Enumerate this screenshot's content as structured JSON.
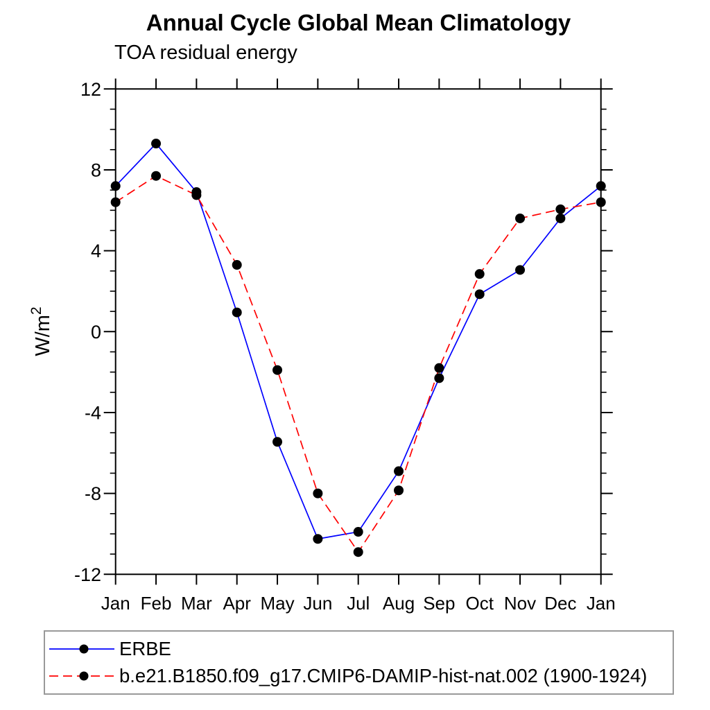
{
  "title": "Annual Cycle Global Mean Climatology",
  "subtitle": "TOA residual energy",
  "chart_data": {
    "type": "line",
    "x_categories": [
      "Jan",
      "Feb",
      "Mar",
      "Apr",
      "May",
      "Jun",
      "Jul",
      "Aug",
      "Sep",
      "Oct",
      "Nov",
      "Dec",
      "Jan"
    ],
    "ylabel_base": "W/m",
    "ylabel_sup": "2",
    "ylim": [
      -12,
      12
    ],
    "ytick_major": [
      -12,
      -8,
      -4,
      0,
      4,
      8,
      12
    ],
    "ytick_minor_step": 1,
    "grid": false,
    "tick_direction": "outward",
    "legend_position": "bottom-left",
    "axis_color": "#000000",
    "marker_color": "#000000",
    "series": [
      {
        "name": "ERBE",
        "color": "#0000ff",
        "line_style": "solid",
        "marker": "black-circle",
        "values": [
          7.2,
          9.3,
          6.9,
          0.95,
          -5.45,
          -10.25,
          -9.9,
          -6.9,
          -2.3,
          1.85,
          3.05,
          5.6,
          7.2
        ]
      },
      {
        "name": "b.e21.B1850.f09_g17.CMIP6-DAMIP-hist-nat.002 (1900-1924)",
        "color": "#ff0000",
        "line_style": "dashed",
        "marker": "black-circle",
        "values": [
          6.4,
          7.7,
          6.75,
          3.3,
          -1.9,
          -8.0,
          -10.9,
          -7.85,
          -1.8,
          2.85,
          5.6,
          6.05,
          6.4
        ]
      }
    ]
  }
}
